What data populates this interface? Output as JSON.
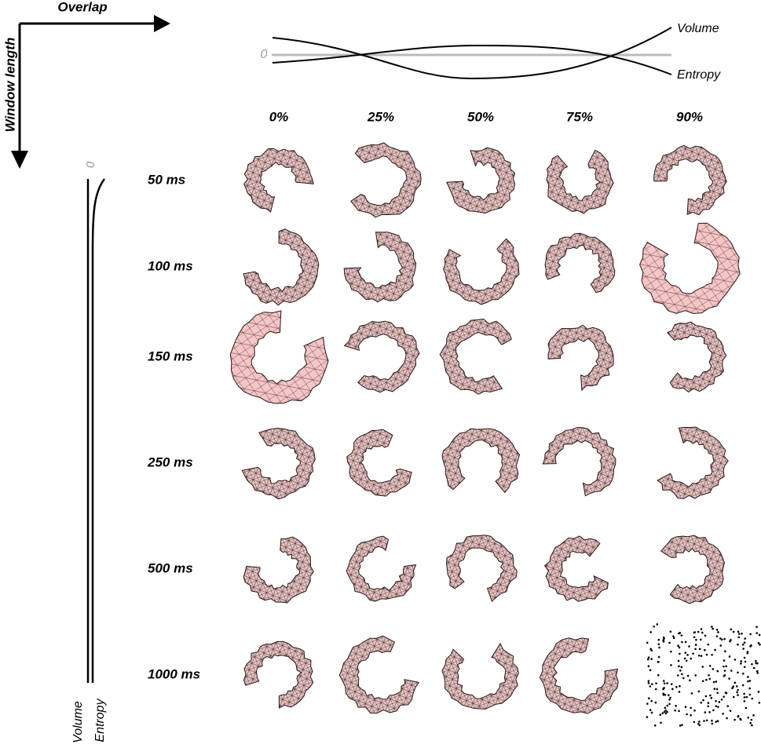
{
  "axes": {
    "overlap": "Overlap",
    "window_length": "Window length"
  },
  "top_curves": {
    "zero": "0",
    "volume": "Volume",
    "entropy": "Entropy"
  },
  "side_curves": {
    "zero": "0",
    "volume": "Volume",
    "entropy": "Entropy"
  },
  "columns": [
    "0%",
    "25%",
    "50%",
    "75%",
    "90%"
  ],
  "rows": [
    "50 ms",
    "100 ms",
    "150 ms",
    "250 ms",
    "500 ms",
    "1000 ms"
  ]
}
